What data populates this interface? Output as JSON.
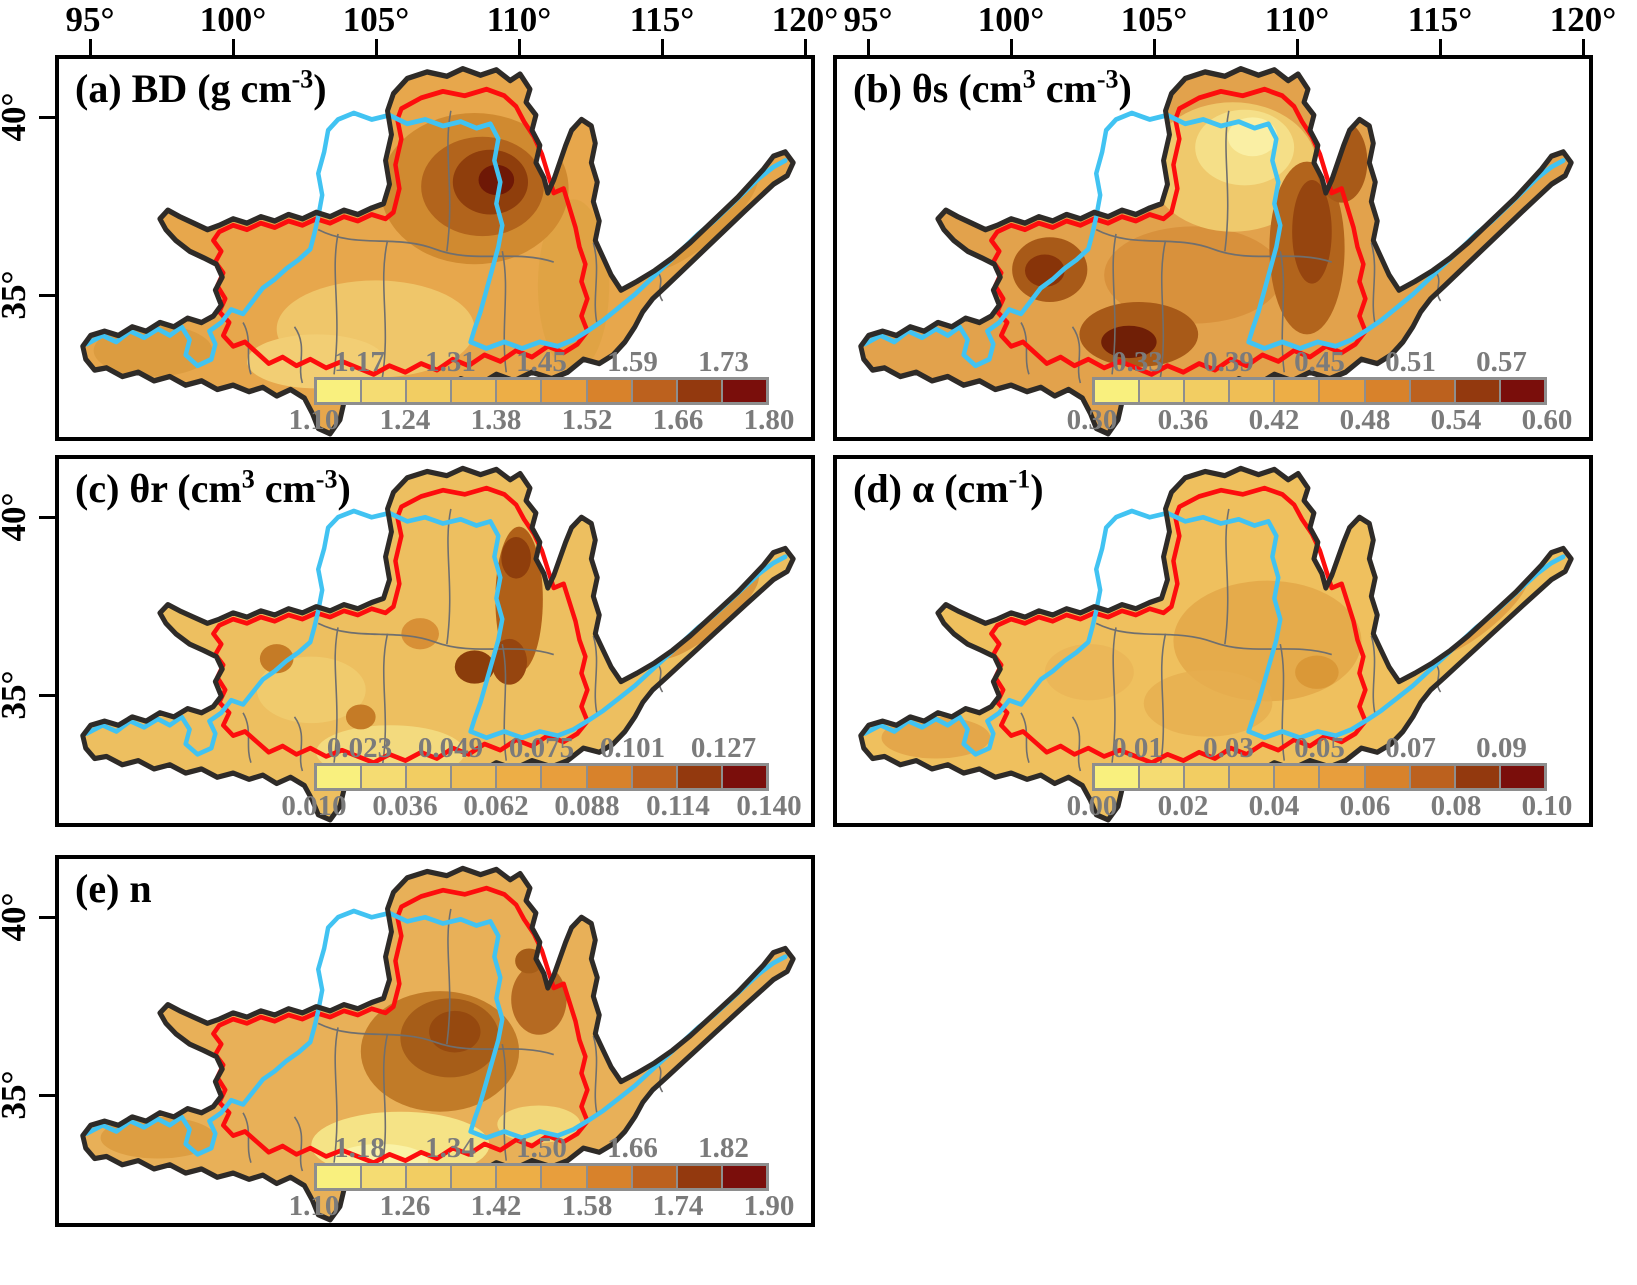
{
  "top_axis": {
    "labels": [
      "95°",
      "100°",
      "105°",
      "110°",
      "115°",
      "120°"
    ]
  },
  "left_axis": {
    "labels": [
      "40°",
      "35°"
    ]
  },
  "colorbar": {
    "colors": [
      "#F9F07E",
      "#F5DC72",
      "#F2CD62",
      "#EFBE55",
      "#EDAE46",
      "#E89E3C",
      "#D8822B",
      "#BC611E",
      "#93390E",
      "#7A0E0B"
    ],
    "border_color": "#8E8E8E",
    "label_color": "#7B7B7B"
  },
  "colors": {
    "basin_outline": "#2E2B28",
    "region_boundary": "#FD0D0D",
    "river": "#41C3F2",
    "subbasin_lines": "#6F6F6F",
    "background": "#FFFFFF"
  },
  "panels": [
    {
      "id": "a",
      "title": {
        "t1": "(a) BD (g cm",
        "s1": "-3",
        "t2": ")",
        "s2": "",
        "t3": ""
      },
      "cbar_top": [
        "1.17",
        "1.31",
        "1.45",
        "1.59",
        "1.73"
      ],
      "cbar_bottom": [
        "1.10",
        "1.24",
        "1.38",
        "1.52",
        "1.66",
        "1.80"
      ]
    },
    {
      "id": "b",
      "title": {
        "t1": "(b) θs (cm",
        "s1": "3",
        "t2": " cm",
        "s2": "-3",
        "t3": ")"
      },
      "cbar_top": [
        "0.33",
        "0.39",
        "0.45",
        "0.51",
        "0.57"
      ],
      "cbar_bottom": [
        "0.30",
        "0.36",
        "0.42",
        "0.48",
        "0.54",
        "0.60"
      ]
    },
    {
      "id": "c",
      "title": {
        "t1": "(c) θr (cm",
        "s1": "3",
        "t2": " cm",
        "s2": "-3",
        "t3": ")"
      },
      "cbar_top": [
        "0.023",
        "0.049",
        "0.075",
        "0.101",
        "0.127"
      ],
      "cbar_bottom": [
        "0.010",
        "0.036",
        "0.062",
        "0.088",
        "0.114",
        "0.140"
      ]
    },
    {
      "id": "d",
      "title": {
        "t1": "(d) α (cm",
        "s1": "-1",
        "t2": ")",
        "s2": "",
        "t3": ""
      },
      "cbar_top": [
        "0.01",
        "0.03",
        "0.05",
        "0.07",
        "0.09"
      ],
      "cbar_bottom": [
        "0.00",
        "0.02",
        "0.04",
        "0.06",
        "0.08",
        "0.10"
      ]
    },
    {
      "id": "e",
      "title": {
        "t1": "(e) n",
        "s1": "",
        "t2": "",
        "s2": "",
        "t3": ""
      },
      "cbar_top": [
        "1.18",
        "1.34",
        "1.50",
        "1.66",
        "1.82"
      ],
      "cbar_bottom": [
        "1.10",
        "1.26",
        "1.42",
        "1.58",
        "1.74",
        "1.90"
      ]
    }
  ],
  "chart_data": [
    {
      "type": "heatmap",
      "panel": "a",
      "variable": "BD",
      "unit": "g cm-3",
      "scale_ticks": [
        1.1,
        1.17,
        1.24,
        1.31,
        1.38,
        1.45,
        1.52,
        1.59,
        1.66,
        1.73,
        1.8
      ],
      "range": [
        1.1,
        1.8
      ]
    },
    {
      "type": "heatmap",
      "panel": "b",
      "variable": "θs",
      "unit": "cm3 cm-3",
      "scale_ticks": [
        0.3,
        0.33,
        0.36,
        0.39,
        0.42,
        0.45,
        0.48,
        0.51,
        0.54,
        0.57,
        0.6
      ],
      "range": [
        0.3,
        0.6
      ]
    },
    {
      "type": "heatmap",
      "panel": "c",
      "variable": "θr",
      "unit": "cm3 cm-3",
      "scale_ticks": [
        0.01,
        0.023,
        0.036,
        0.049,
        0.062,
        0.075,
        0.088,
        0.101,
        0.114,
        0.127,
        0.14
      ],
      "range": [
        0.01,
        0.14
      ]
    },
    {
      "type": "heatmap",
      "panel": "d",
      "variable": "α",
      "unit": "cm-1",
      "scale_ticks": [
        0.0,
        0.01,
        0.02,
        0.03,
        0.04,
        0.05,
        0.06,
        0.07,
        0.08,
        0.09,
        0.1
      ],
      "range": [
        0.0,
        0.1
      ]
    },
    {
      "type": "heatmap",
      "panel": "e",
      "variable": "n",
      "unit": "",
      "scale_ticks": [
        1.1,
        1.18,
        1.26,
        1.34,
        1.42,
        1.5,
        1.58,
        1.66,
        1.74,
        1.82,
        1.9
      ],
      "range": [
        1.1,
        1.9
      ]
    }
  ]
}
